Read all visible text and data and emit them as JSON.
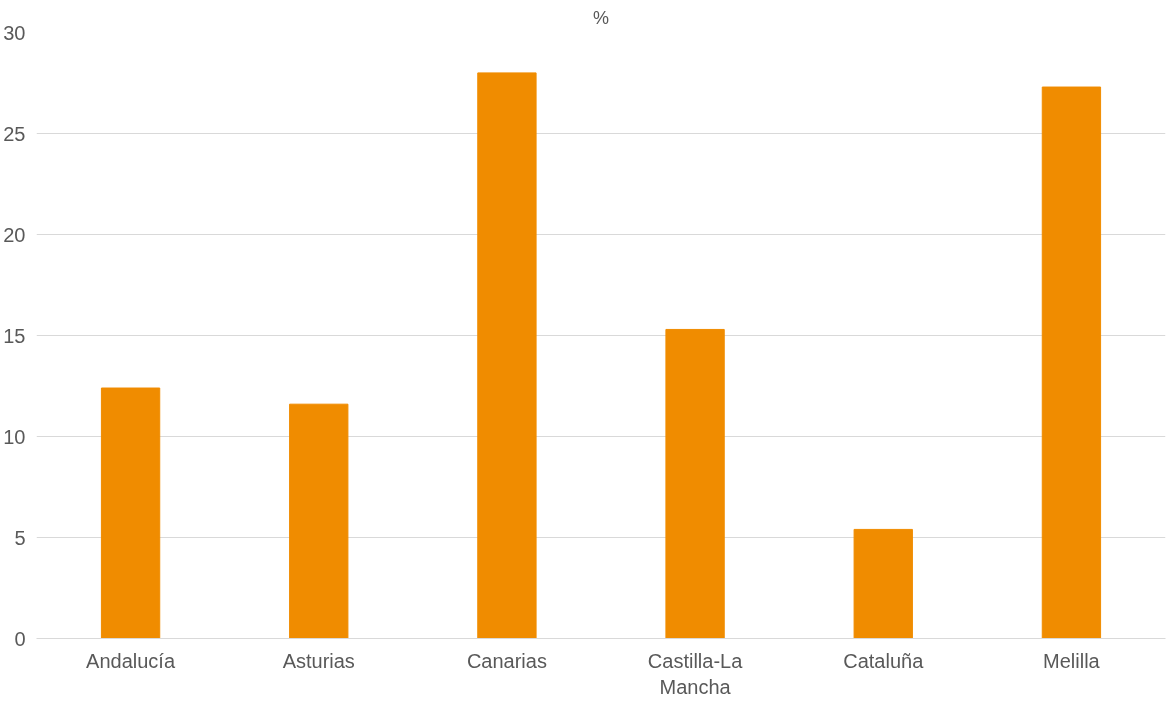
{
  "chart_data": {
    "type": "bar",
    "title": "%",
    "categories": [
      "Andalucía",
      "Asturias",
      "Canarias",
      "Castilla-La Mancha",
      "Cataluña",
      "Melilla"
    ],
    "values": [
      12.4,
      11.6,
      28.0,
      15.3,
      5.4,
      27.3
    ],
    "color": "#f08c00",
    "ylim": [
      0,
      30
    ],
    "yticks": [
      0,
      5,
      10,
      15,
      20,
      25,
      30
    ],
    "grid": "y"
  }
}
